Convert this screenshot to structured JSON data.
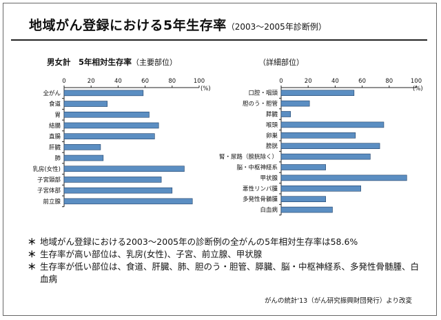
{
  "title": {
    "main": "地域がん登録における5年生存率",
    "sub": "（2003～2005年診断例）"
  },
  "left_chart_title": {
    "main": "男女計　5年相対生存率",
    "paren": "（主要部位）"
  },
  "right_chart_title": "（詳細部位）",
  "chart_data": [
    {
      "type": "bar",
      "orientation": "horizontal",
      "categories": [
        "全がん",
        "食道",
        "胃",
        "結腸",
        "直腸",
        "肝臓",
        "肺",
        "乳房(女性)",
        "子宮頸部",
        "子宮体部",
        "前立腺"
      ],
      "values": [
        58.6,
        32,
        63,
        70,
        67,
        27,
        29,
        89,
        72,
        80,
        95
      ],
      "xlim": [
        0,
        100
      ],
      "ticks": [
        "0",
        "20",
        "40",
        "60",
        "80",
        "100"
      ],
      "unit": "(%)",
      "color": "#5b8ec2"
    },
    {
      "type": "bar",
      "orientation": "horizontal",
      "categories": [
        "口腔・咽頭",
        "胆のう・胆管",
        "膵臓",
        "喉頭",
        "卵巣",
        "膀胱",
        "腎・尿路（膀胱除く）",
        "脳・中枢神経系",
        "甲状腺",
        "悪性リンパ腫",
        "多発性骨髄腫",
        "白血病"
      ],
      "values": [
        54,
        21,
        7,
        76,
        55,
        73,
        66,
        33,
        93,
        59,
        33,
        38
      ],
      "xlim": [
        0,
        100
      ],
      "ticks": [
        "0",
        "20",
        "40",
        "60",
        "80",
        "100"
      ],
      "unit": "(%)",
      "color": "#5b8ec2"
    }
  ],
  "notes": [
    {
      "bullet": "＊",
      "text": "地域がん登録における2003～2005年の診断例の全がんの5年相対生存率は58.6%"
    },
    {
      "bullet": "＊",
      "text": "生存率が高い部位は、乳房(女性)、子宮、前立腺、甲状腺"
    },
    {
      "bullet": "＊",
      "text": "生存率が低い部位は、食道、肝臓、肺、胆のう・胆管、膵臓、脳・中枢神経系、多発性骨髄腫、白血病"
    }
  ],
  "source": "がんの統計'13（がん研究振興財団発行）より改変"
}
